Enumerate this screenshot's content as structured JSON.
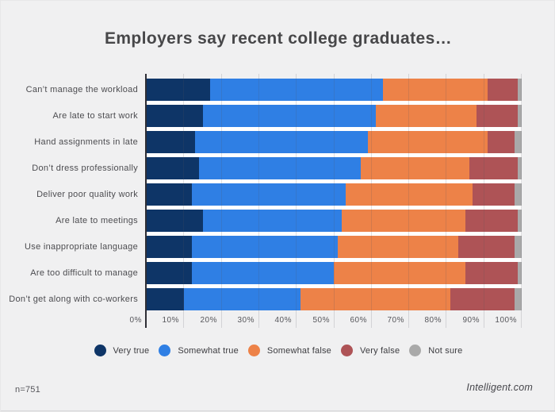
{
  "title": "Employers say recent college graduates…",
  "footer": {
    "sample": "n=751",
    "source": "Intelligent.com"
  },
  "colors": {
    "background": "#f0f0f1",
    "bar_gap": "#ffffff",
    "axis": "#2e2e35",
    "very_true": "#0e3567",
    "somewhat_true": "#2f7fe4",
    "somewhat_false": "#ed8248",
    "very_false": "#ae5356",
    "not_sure": "#a9a9a9"
  },
  "chart_data": {
    "type": "bar",
    "stacked": true,
    "orientation": "horizontal",
    "title": "Employers say recent college graduates…",
    "xlabel": "",
    "ylabel": "",
    "xlim": [
      0,
      100
    ],
    "grid": true,
    "legend_position": "bottom",
    "x_ticks": [
      "0%",
      "10%",
      "20%",
      "30%",
      "40%",
      "50%",
      "60%",
      "70%",
      "80%",
      "90%",
      "100%"
    ],
    "categories": [
      "Can’t manage the workload",
      "Are late to start work",
      "Hand assignments in late",
      "Don’t dress professionally",
      "Deliver poor quality work",
      "Are late to meetings",
      "Use inappropriate language",
      "Are too difficult to manage",
      "Don’t get along with co-workers"
    ],
    "series": [
      {
        "name": "Very true",
        "color": "#0e3567",
        "values": [
          17,
          15,
          13,
          14,
          12,
          15,
          12,
          12,
          10
        ]
      },
      {
        "name": "Somewhat true",
        "color": "#2f7fe4",
        "values": [
          46,
          46,
          46,
          43,
          41,
          37,
          39,
          38,
          31
        ]
      },
      {
        "name": "Somewhat false",
        "color": "#ed8248",
        "values": [
          28,
          27,
          32,
          29,
          34,
          33,
          32,
          35,
          40
        ]
      },
      {
        "name": "Very false",
        "color": "#ae5356",
        "values": [
          8,
          11,
          7,
          13,
          11,
          14,
          15,
          14,
          17
        ]
      },
      {
        "name": "Not sure",
        "color": "#a9a9a9",
        "values": [
          1,
          1,
          2,
          1,
          2,
          1,
          2,
          1,
          2
        ]
      }
    ]
  }
}
